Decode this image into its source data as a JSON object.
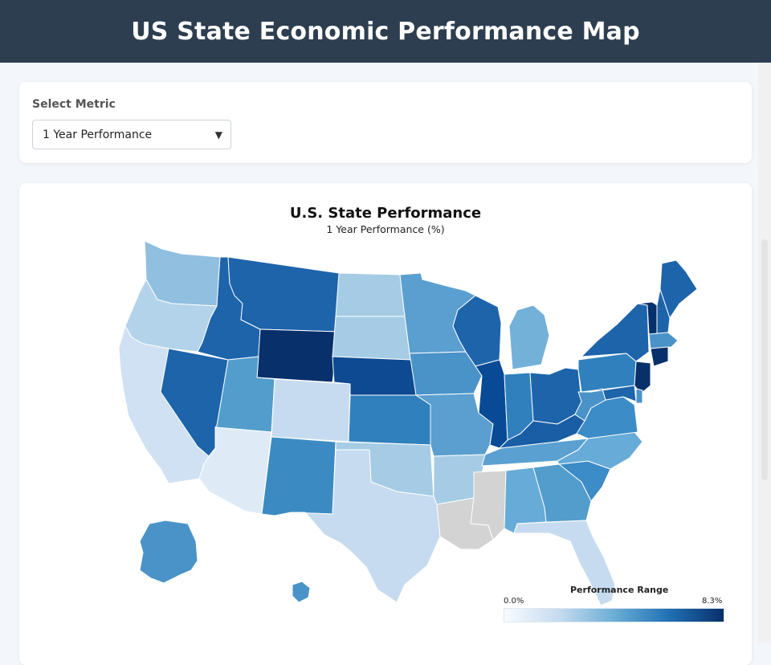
{
  "header": {
    "title": "US State Economic Performance Map"
  },
  "controls": {
    "label": "Select Metric",
    "selected": "1 Year Performance",
    "options": [
      "1 Year Performance"
    ]
  },
  "map": {
    "title": "U.S. State Performance",
    "subtitle": "1 Year Performance (%)",
    "legend": {
      "title": "Performance Range",
      "min_label": "0.0%",
      "max_label": "8.3%"
    },
    "color_scale": [
      "#f7fbff",
      "#c6dbef",
      "#6baed6",
      "#2171b5",
      "#08306b"
    ],
    "no_data_color": "#d3d3d3",
    "states": [
      {
        "state": "WA",
        "color": "#90bfe0"
      },
      {
        "state": "OR",
        "color": "#b3d3ea"
      },
      {
        "state": "CA",
        "color": "#cfe1f2"
      },
      {
        "state": "NV",
        "color": "#1d64ab"
      },
      {
        "state": "ID",
        "color": "#1d64ab"
      },
      {
        "state": "MT",
        "color": "#1d64ab"
      },
      {
        "state": "WY",
        "color": "#08306b"
      },
      {
        "state": "UT",
        "color": "#529dcc"
      },
      {
        "state": "AZ",
        "color": "#deebf7"
      },
      {
        "state": "CO",
        "color": "#c6dbef"
      },
      {
        "state": "NM",
        "color": "#3b8bc2"
      },
      {
        "state": "ND",
        "color": "#a5cce4"
      },
      {
        "state": "SD",
        "color": "#a5cce4"
      },
      {
        "state": "NE",
        "color": "#0d4a91"
      },
      {
        "state": "KS",
        "color": "#3080bd"
      },
      {
        "state": "OK",
        "color": "#a5cce4"
      },
      {
        "state": "TX",
        "color": "#c6dbef"
      },
      {
        "state": "MN",
        "color": "#5a9fd0"
      },
      {
        "state": "IA",
        "color": "#4a93c8"
      },
      {
        "state": "MO",
        "color": "#5a9fd0"
      },
      {
        "state": "AR",
        "color": "#a5cce4"
      },
      {
        "state": "LA",
        "color": "#d3d3d3"
      },
      {
        "state": "MS",
        "color": "#d3d3d3"
      },
      {
        "state": "WI",
        "color": "#1d64ab"
      },
      {
        "state": "IL",
        "color": "#084a95"
      },
      {
        "state": "MI",
        "color": "#73b1d8"
      },
      {
        "state": "IN",
        "color": "#3080bd"
      },
      {
        "state": "OH",
        "color": "#1d64ab"
      },
      {
        "state": "KY",
        "color": "#1a5ea5"
      },
      {
        "state": "TN",
        "color": "#5aa1d2"
      },
      {
        "state": "AL",
        "color": "#67abd8"
      },
      {
        "state": "GA",
        "color": "#529dcc"
      },
      {
        "state": "FL",
        "color": "#c6dbef"
      },
      {
        "state": "SC",
        "color": "#3c8cc8"
      },
      {
        "state": "NC",
        "color": "#67abd8"
      },
      {
        "state": "VA",
        "color": "#3c8cc8"
      },
      {
        "state": "WV",
        "color": "#4a93c8"
      },
      {
        "state": "PA",
        "color": "#3080bd"
      },
      {
        "state": "NY",
        "color": "#1d64ab"
      },
      {
        "state": "VT",
        "color": "#08306b"
      },
      {
        "state": "NH",
        "color": "#1d64ab"
      },
      {
        "state": "ME",
        "color": "#1d64ab"
      },
      {
        "state": "MA",
        "color": "#4a93c8"
      },
      {
        "state": "CT",
        "color": "#08306b"
      },
      {
        "state": "NJ",
        "color": "#08306b"
      },
      {
        "state": "DE",
        "color": "#4a93c8"
      },
      {
        "state": "MD",
        "color": "#1d64ab"
      },
      {
        "state": "AK",
        "color": "#4a93c8"
      },
      {
        "state": "HI",
        "color": "#4a93c8"
      }
    ]
  }
}
